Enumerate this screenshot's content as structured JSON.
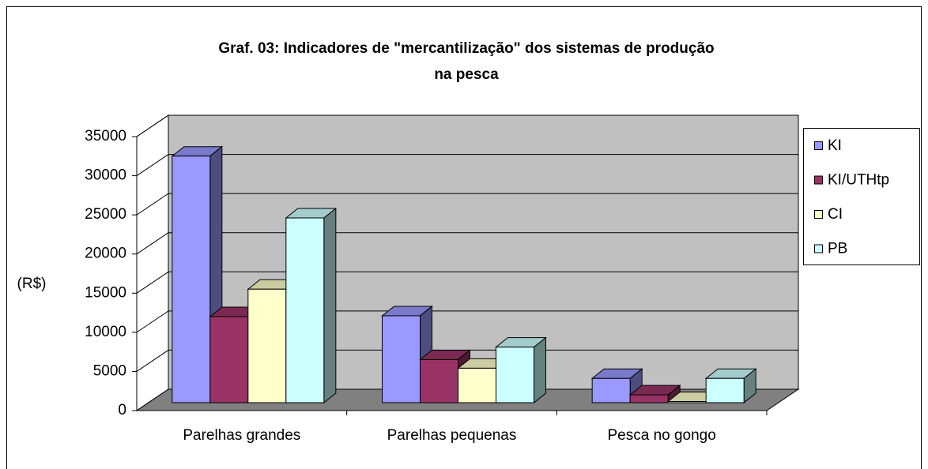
{
  "chart_data": {
    "type": "bar3d",
    "title": "Graf. 03: Indicadores de \"mercantilização\" dos sistemas de produção",
    "subtitle": "na pesca",
    "y_label": "(R$)",
    "categories": [
      "Parelhas grandes",
      "Parelhas pequenas",
      "Pesca no gongo"
    ],
    "series": [
      {
        "name": "KI",
        "color": "#9999ff",
        "values": [
          31500,
          11100,
          3100
        ]
      },
      {
        "name": "KI/UTHtp",
        "color": "#993366",
        "values": [
          11000,
          5500,
          1000
        ]
      },
      {
        "name": "CI",
        "color": "#ffffcc",
        "values": [
          14500,
          4400,
          150
        ]
      },
      {
        "name": "PB",
        "color": "#ccffff",
        "values": [
          23600,
          7100,
          3100
        ]
      }
    ],
    "ylim": [
      0,
      35000
    ],
    "yticks": [
      0,
      5000,
      10000,
      15000,
      20000,
      25000,
      30000,
      35000
    ],
    "grid": true,
    "legend": "right"
  }
}
